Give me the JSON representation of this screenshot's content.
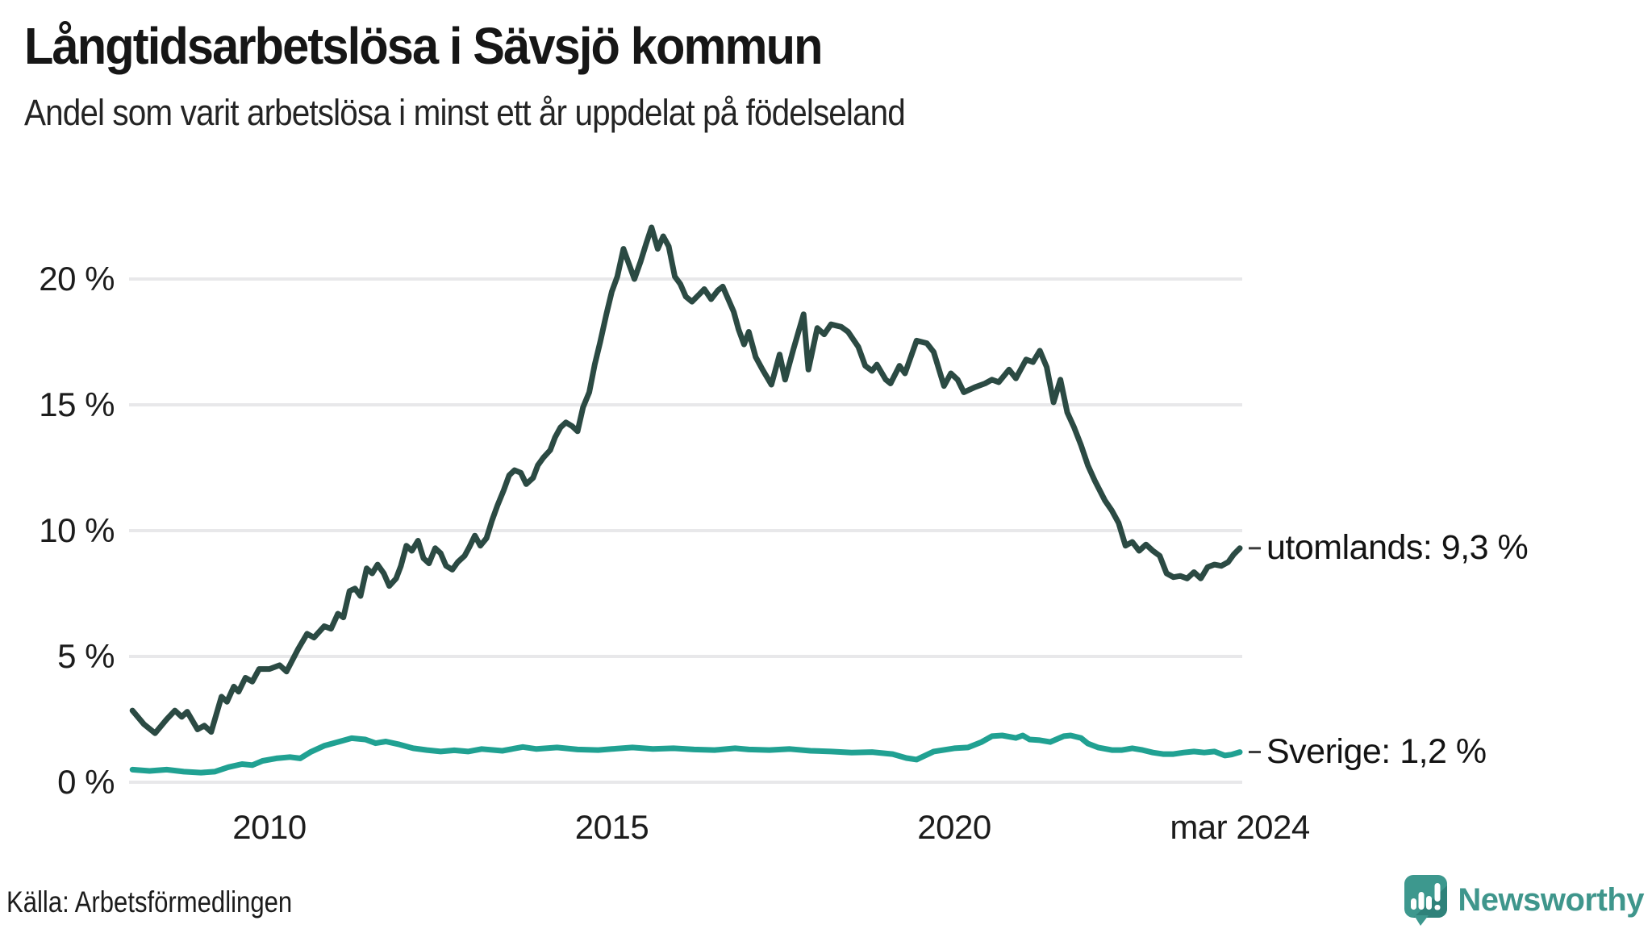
{
  "chart_data": {
    "type": "line",
    "title": "Långtidsarbetslösa i Sävsjö kommun",
    "subtitle": "Andel som varit arbetslösa i minst ett år uppdelat på födelseland",
    "source": "Källa: Arbetsförmedlingen",
    "grid": "horizontal-only",
    "legend_position": "right-end-of-line",
    "x_axis": {
      "range_years": [
        2008.0,
        2024.17
      ],
      "ticks": [
        {
          "label": "2010",
          "year": 2010
        },
        {
          "label": "2015",
          "year": 2015
        },
        {
          "label": "2020",
          "year": 2020
        },
        {
          "label": "mar 2024",
          "year": 2024.17
        }
      ]
    },
    "y_axis": {
      "unit": "%",
      "range": [
        0,
        22.5
      ],
      "ticks": [
        {
          "label": "0 %",
          "value": 0
        },
        {
          "label": "5 %",
          "value": 5
        },
        {
          "label": "10 %",
          "value": 10
        },
        {
          "label": "15 %",
          "value": 15
        },
        {
          "label": "20 %",
          "value": 20
        }
      ]
    },
    "series": [
      {
        "name": "utomlands",
        "label": "utomlands: 9,3 %",
        "last_value_text": "9,3 %",
        "color": "#2B4A43",
        "points": [
          [
            2008.0,
            2.85
          ],
          [
            2008.17,
            2.3
          ],
          [
            2008.33,
            1.95
          ],
          [
            2008.5,
            2.5
          ],
          [
            2008.62,
            2.85
          ],
          [
            2008.72,
            2.6
          ],
          [
            2008.8,
            2.8
          ],
          [
            2008.95,
            2.1
          ],
          [
            2009.05,
            2.25
          ],
          [
            2009.15,
            2.0
          ],
          [
            2009.3,
            3.4
          ],
          [
            2009.38,
            3.2
          ],
          [
            2009.48,
            3.8
          ],
          [
            2009.55,
            3.6
          ],
          [
            2009.65,
            4.15
          ],
          [
            2009.75,
            4.0
          ],
          [
            2009.85,
            4.5
          ],
          [
            2010.0,
            4.5
          ],
          [
            2010.15,
            4.65
          ],
          [
            2010.25,
            4.4
          ],
          [
            2010.42,
            5.3
          ],
          [
            2010.55,
            5.9
          ],
          [
            2010.65,
            5.75
          ],
          [
            2010.8,
            6.2
          ],
          [
            2010.9,
            6.1
          ],
          [
            2011.0,
            6.7
          ],
          [
            2011.08,
            6.55
          ],
          [
            2011.17,
            7.6
          ],
          [
            2011.25,
            7.7
          ],
          [
            2011.33,
            7.4
          ],
          [
            2011.42,
            8.5
          ],
          [
            2011.5,
            8.3
          ],
          [
            2011.58,
            8.65
          ],
          [
            2011.67,
            8.3
          ],
          [
            2011.75,
            7.8
          ],
          [
            2011.85,
            8.1
          ],
          [
            2011.92,
            8.6
          ],
          [
            2012.0,
            9.4
          ],
          [
            2012.08,
            9.2
          ],
          [
            2012.17,
            9.6
          ],
          [
            2012.25,
            8.9
          ],
          [
            2012.33,
            8.7
          ],
          [
            2012.42,
            9.3
          ],
          [
            2012.5,
            9.1
          ],
          [
            2012.58,
            8.6
          ],
          [
            2012.67,
            8.45
          ],
          [
            2012.75,
            8.75
          ],
          [
            2012.85,
            9.0
          ],
          [
            2012.92,
            9.35
          ],
          [
            2013.0,
            9.8
          ],
          [
            2013.08,
            9.4
          ],
          [
            2013.17,
            9.7
          ],
          [
            2013.25,
            10.4
          ],
          [
            2013.33,
            11.0
          ],
          [
            2013.42,
            11.6
          ],
          [
            2013.5,
            12.2
          ],
          [
            2013.58,
            12.4
          ],
          [
            2013.67,
            12.3
          ],
          [
            2013.75,
            11.85
          ],
          [
            2013.85,
            12.1
          ],
          [
            2013.92,
            12.6
          ],
          [
            2014.0,
            12.9
          ],
          [
            2014.1,
            13.2
          ],
          [
            2014.17,
            13.7
          ],
          [
            2014.25,
            14.1
          ],
          [
            2014.33,
            14.3
          ],
          [
            2014.42,
            14.15
          ],
          [
            2014.5,
            13.95
          ],
          [
            2014.58,
            14.9
          ],
          [
            2014.67,
            15.5
          ],
          [
            2014.75,
            16.6
          ],
          [
            2014.83,
            17.5
          ],
          [
            2014.92,
            18.6
          ],
          [
            2015.0,
            19.5
          ],
          [
            2015.08,
            20.1
          ],
          [
            2015.17,
            21.2
          ],
          [
            2015.25,
            20.6
          ],
          [
            2015.33,
            20.0
          ],
          [
            2015.42,
            20.7
          ],
          [
            2015.5,
            21.4
          ],
          [
            2015.58,
            22.05
          ],
          [
            2015.67,
            21.2
          ],
          [
            2015.75,
            21.7
          ],
          [
            2015.83,
            21.3
          ],
          [
            2015.92,
            20.1
          ],
          [
            2016.0,
            19.8
          ],
          [
            2016.08,
            19.3
          ],
          [
            2016.17,
            19.1
          ],
          [
            2016.28,
            19.4
          ],
          [
            2016.35,
            19.6
          ],
          [
            2016.45,
            19.2
          ],
          [
            2016.55,
            19.55
          ],
          [
            2016.62,
            19.7
          ],
          [
            2016.7,
            19.2
          ],
          [
            2016.78,
            18.7
          ],
          [
            2016.85,
            18.0
          ],
          [
            2016.93,
            17.4
          ],
          [
            2017.0,
            17.9
          ],
          [
            2017.1,
            16.9
          ],
          [
            2017.2,
            16.4
          ],
          [
            2017.33,
            15.8
          ],
          [
            2017.45,
            17.0
          ],
          [
            2017.53,
            16.0
          ],
          [
            2017.65,
            17.2
          ],
          [
            2017.8,
            18.6
          ],
          [
            2017.87,
            16.4
          ],
          [
            2018.0,
            18.05
          ],
          [
            2018.1,
            17.8
          ],
          [
            2018.2,
            18.2
          ],
          [
            2018.35,
            18.1
          ],
          [
            2018.45,
            17.9
          ],
          [
            2018.6,
            17.3
          ],
          [
            2018.7,
            16.55
          ],
          [
            2018.8,
            16.35
          ],
          [
            2018.87,
            16.6
          ],
          [
            2019.0,
            16.0
          ],
          [
            2019.07,
            15.85
          ],
          [
            2019.2,
            16.55
          ],
          [
            2019.28,
            16.25
          ],
          [
            2019.45,
            17.55
          ],
          [
            2019.6,
            17.45
          ],
          [
            2019.7,
            17.1
          ],
          [
            2019.85,
            15.75
          ],
          [
            2019.95,
            16.25
          ],
          [
            2020.05,
            16.0
          ],
          [
            2020.14,
            15.5
          ],
          [
            2020.3,
            15.7
          ],
          [
            2020.45,
            15.85
          ],
          [
            2020.55,
            16.0
          ],
          [
            2020.65,
            15.9
          ],
          [
            2020.8,
            16.4
          ],
          [
            2020.9,
            16.05
          ],
          [
            2021.05,
            16.8
          ],
          [
            2021.15,
            16.7
          ],
          [
            2021.25,
            17.15
          ],
          [
            2021.35,
            16.5
          ],
          [
            2021.45,
            15.1
          ],
          [
            2021.55,
            16.0
          ],
          [
            2021.65,
            14.7
          ],
          [
            2021.75,
            14.1
          ],
          [
            2021.85,
            13.4
          ],
          [
            2021.95,
            12.6
          ],
          [
            2022.05,
            12.0
          ],
          [
            2022.2,
            11.2
          ],
          [
            2022.3,
            10.8
          ],
          [
            2022.4,
            10.3
          ],
          [
            2022.5,
            9.4
          ],
          [
            2022.6,
            9.55
          ],
          [
            2022.7,
            9.2
          ],
          [
            2022.8,
            9.45
          ],
          [
            2022.9,
            9.2
          ],
          [
            2023.0,
            9.0
          ],
          [
            2023.1,
            8.3
          ],
          [
            2023.2,
            8.15
          ],
          [
            2023.3,
            8.2
          ],
          [
            2023.4,
            8.1
          ],
          [
            2023.5,
            8.35
          ],
          [
            2023.6,
            8.1
          ],
          [
            2023.7,
            8.55
          ],
          [
            2023.8,
            8.65
          ],
          [
            2023.9,
            8.6
          ],
          [
            2024.0,
            8.75
          ],
          [
            2024.08,
            9.05
          ],
          [
            2024.17,
            9.3
          ]
        ]
      },
      {
        "name": "Sverige",
        "label": "Sverige: 1,2 %",
        "last_value_text": "1,2 %",
        "color": "#20A192",
        "points": [
          [
            2008.0,
            0.5
          ],
          [
            2008.25,
            0.45
          ],
          [
            2008.5,
            0.5
          ],
          [
            2008.75,
            0.42
          ],
          [
            2009.0,
            0.38
          ],
          [
            2009.2,
            0.42
          ],
          [
            2009.4,
            0.6
          ],
          [
            2009.6,
            0.72
          ],
          [
            2009.75,
            0.68
          ],
          [
            2009.9,
            0.85
          ],
          [
            2010.1,
            0.95
          ],
          [
            2010.3,
            1.0
          ],
          [
            2010.45,
            0.95
          ],
          [
            2010.6,
            1.2
          ],
          [
            2010.8,
            1.45
          ],
          [
            2011.0,
            1.6
          ],
          [
            2011.2,
            1.75
          ],
          [
            2011.4,
            1.7
          ],
          [
            2011.55,
            1.55
          ],
          [
            2011.7,
            1.62
          ],
          [
            2011.9,
            1.5
          ],
          [
            2012.1,
            1.35
          ],
          [
            2012.3,
            1.28
          ],
          [
            2012.5,
            1.22
          ],
          [
            2012.7,
            1.27
          ],
          [
            2012.9,
            1.22
          ],
          [
            2013.1,
            1.32
          ],
          [
            2013.4,
            1.25
          ],
          [
            2013.7,
            1.4
          ],
          [
            2013.9,
            1.32
          ],
          [
            2014.2,
            1.38
          ],
          [
            2014.5,
            1.3
          ],
          [
            2014.8,
            1.28
          ],
          [
            2015.0,
            1.32
          ],
          [
            2015.3,
            1.38
          ],
          [
            2015.6,
            1.32
          ],
          [
            2015.9,
            1.35
          ],
          [
            2016.2,
            1.3
          ],
          [
            2016.5,
            1.28
          ],
          [
            2016.8,
            1.35
          ],
          [
            2017.0,
            1.3
          ],
          [
            2017.3,
            1.28
          ],
          [
            2017.6,
            1.32
          ],
          [
            2017.9,
            1.25
          ],
          [
            2018.2,
            1.22
          ],
          [
            2018.5,
            1.18
          ],
          [
            2018.8,
            1.2
          ],
          [
            2019.1,
            1.12
          ],
          [
            2019.3,
            0.96
          ],
          [
            2019.45,
            0.9
          ],
          [
            2019.7,
            1.22
          ],
          [
            2020.0,
            1.35
          ],
          [
            2020.2,
            1.38
          ],
          [
            2020.4,
            1.6
          ],
          [
            2020.55,
            1.83
          ],
          [
            2020.7,
            1.86
          ],
          [
            2020.9,
            1.76
          ],
          [
            2021.0,
            1.86
          ],
          [
            2021.1,
            1.7
          ],
          [
            2021.25,
            1.67
          ],
          [
            2021.4,
            1.6
          ],
          [
            2021.6,
            1.83
          ],
          [
            2021.7,
            1.86
          ],
          [
            2021.85,
            1.76
          ],
          [
            2021.95,
            1.54
          ],
          [
            2022.1,
            1.38
          ],
          [
            2022.3,
            1.28
          ],
          [
            2022.45,
            1.28
          ],
          [
            2022.6,
            1.35
          ],
          [
            2022.75,
            1.28
          ],
          [
            2022.9,
            1.18
          ],
          [
            2023.05,
            1.12
          ],
          [
            2023.2,
            1.12
          ],
          [
            2023.35,
            1.18
          ],
          [
            2023.5,
            1.22
          ],
          [
            2023.65,
            1.18
          ],
          [
            2023.8,
            1.22
          ],
          [
            2023.95,
            1.06
          ],
          [
            2024.05,
            1.1
          ],
          [
            2024.17,
            1.2
          ]
        ]
      }
    ]
  },
  "colors": {
    "gridline": "#E8E8EA",
    "end_tick": "#3B3B3B",
    "title_text": "#161616",
    "tick_text": "#1C1C1C"
  },
  "branding": {
    "name": "Newsworthy",
    "wordmark_color": "#3F968C",
    "icon_color": "#3D988E",
    "icon_shadow_color": "#2F827A"
  }
}
